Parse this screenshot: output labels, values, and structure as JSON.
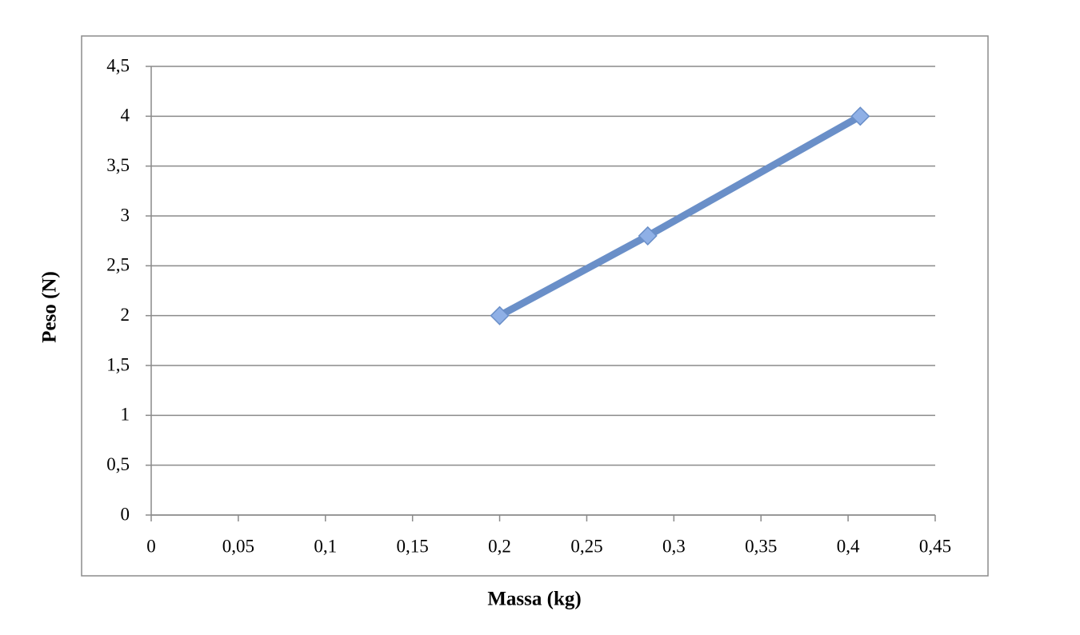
{
  "chart_data": {
    "type": "line",
    "xlabel": "Massa (kg)",
    "ylabel": "Peso (N)",
    "x": [
      0.2,
      0.285,
      0.407
    ],
    "values": [
      2,
      2.8,
      4
    ],
    "color": "#6a8fc8",
    "marker_color": "#8fb0e6",
    "xlim": [
      0,
      0.45
    ],
    "xticks": [
      0,
      {
        "value": 0.05,
        "label": "0,05"
      },
      {
        "value": 0.1,
        "label": "0,1"
      },
      {
        "value": 0.15,
        "label": "0,15"
      },
      {
        "value": 0.2,
        "label": "0,2"
      },
      {
        "value": 0.25,
        "label": "0,25"
      },
      {
        "value": 0.3,
        "label": "0,3"
      },
      {
        "value": 0.35,
        "label": "0,35"
      },
      {
        "value": 0.4,
        "label": "0,4"
      },
      {
        "value": 0.45,
        "label": "0,45"
      }
    ],
    "ylim": [
      0,
      4.5
    ],
    "yticks": [
      0,
      {
        "value": 0.5,
        "label": "0,5"
      },
      1,
      {
        "value": 1.5,
        "label": "1,5"
      },
      2,
      {
        "value": 2.5,
        "label": "2,5"
      },
      3,
      {
        "value": 3.5,
        "label": "3,5"
      },
      4,
      {
        "value": 4.5,
        "label": "4,5"
      }
    ],
    "grid": true
  }
}
